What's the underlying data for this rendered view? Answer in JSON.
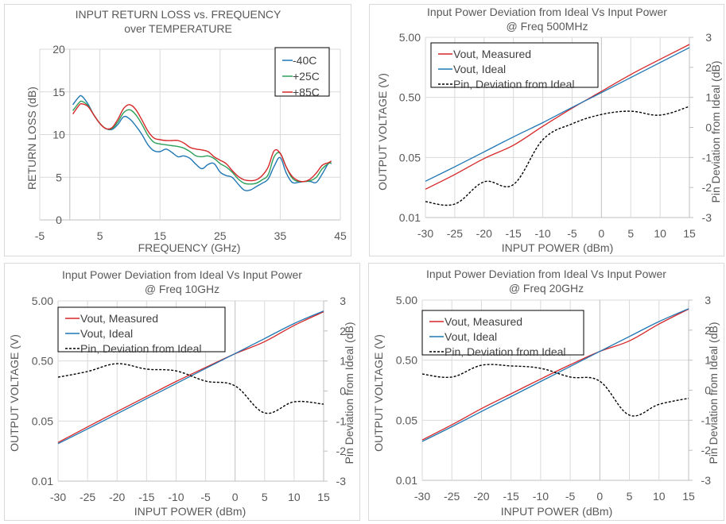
{
  "chart_data": [
    {
      "id": "return-loss",
      "type": "line",
      "title": [
        "INPUT RETURN LOSS vs. FREQUENCY",
        "over TEMPERATURE"
      ],
      "xlabel": "FREQUENCY (GHz)",
      "ylabel": "RETURN LOSS (dB)",
      "xlim": [
        -5,
        45
      ],
      "ylim": [
        0,
        20
      ],
      "xticks": [
        -5,
        5,
        15,
        25,
        35,
        45
      ],
      "yticks": [
        0,
        5,
        10,
        15,
        20
      ],
      "grid": true,
      "legend": "top-right",
      "x": [
        0.5,
        1.5,
        2,
        3,
        4,
        5,
        6,
        7,
        8,
        9,
        10,
        11,
        12,
        13,
        14,
        15,
        16,
        17,
        18,
        19,
        20,
        21,
        22,
        23,
        24,
        25,
        26,
        27,
        28,
        29,
        30,
        31,
        32,
        33,
        34,
        35,
        36,
        37,
        38,
        39,
        40,
        41,
        42,
        43,
        43.5
      ],
      "series": [
        {
          "name": "-40C",
          "color": "#1f77b4",
          "values": [
            13.5,
            14.4,
            14.5,
            13.6,
            12.3,
            11.3,
            10.7,
            10.6,
            11.2,
            12.1,
            11.8,
            11.0,
            10.0,
            8.8,
            8.1,
            8.0,
            8.3,
            7.9,
            7.4,
            7.5,
            7.2,
            6.5,
            6.0,
            6.5,
            6.6,
            5.6,
            5.2,
            5.0,
            4.2,
            3.5,
            3.5,
            3.9,
            4.3,
            4.8,
            6.3,
            7.3,
            5.5,
            4.4,
            4.4,
            4.5,
            4.5,
            4.4,
            5.4,
            6.6,
            6.6
          ]
        },
        {
          "name": "+25C",
          "color": "#2ca05a",
          "values": [
            12.8,
            13.7,
            13.9,
            13.4,
            12.3,
            11.3,
            10.7,
            10.7,
            11.5,
            12.6,
            12.9,
            12.3,
            11.2,
            9.9,
            9.1,
            8.9,
            8.8,
            8.7,
            8.6,
            8.4,
            8.0,
            7.5,
            7.4,
            7.5,
            7.2,
            6.6,
            6.2,
            5.6,
            4.8,
            4.3,
            4.2,
            4.3,
            4.7,
            5.3,
            7.4,
            7.8,
            6.2,
            4.9,
            4.5,
            4.5,
            4.6,
            5.0,
            6.0,
            6.6,
            6.7
          ]
        },
        {
          "name": "+85C",
          "color": "#d62728",
          "values": [
            12.4,
            13.4,
            13.6,
            13.3,
            12.3,
            11.3,
            10.7,
            10.8,
            11.8,
            13.1,
            13.5,
            12.9,
            11.7,
            10.4,
            9.6,
            9.4,
            9.3,
            9.3,
            9.3,
            9.0,
            8.5,
            8.3,
            8.2,
            8.0,
            7.4,
            7.0,
            6.6,
            5.8,
            5.1,
            4.7,
            4.6,
            4.7,
            5.2,
            6.2,
            8.1,
            7.8,
            6.2,
            5.1,
            4.6,
            4.5,
            4.8,
            5.5,
            6.4,
            6.7,
            6.9
          ]
        }
      ]
    },
    {
      "id": "dev-500mhz",
      "type": "line",
      "title": [
        "Input Power Deviation from Ideal Vs Input Power",
        "@ Freq 500MHz"
      ],
      "xlabel": "INPUT POWER (dBm)",
      "ylabel": "OUTPUT VOLTAGE (V)",
      "y2label": "Pin Deviation from Ideal (dB)",
      "xlim": [
        -30,
        15
      ],
      "xticks": [
        -30,
        -25,
        -20,
        -15,
        -10,
        -5,
        0,
        5,
        10,
        15
      ],
      "yscale": "log",
      "ylim": [
        0.005,
        5
      ],
      "ytick_labels": [
        "0.01",
        "0.05",
        "0.50",
        "5.00"
      ],
      "y2lim": [
        -3,
        3
      ],
      "y2ticks": [
        -3,
        -2,
        -1,
        0,
        1,
        2,
        3
      ],
      "grid": true,
      "legend": "top-left",
      "x": [
        -30,
        -25,
        -20,
        -15,
        -10,
        -5,
        0,
        5,
        10,
        15
      ],
      "series": [
        {
          "name": "Vout, Measured",
          "color": "#d62728",
          "axis": "left",
          "style": "solid",
          "values": [
            0.0148,
            0.026,
            0.048,
            0.08,
            0.165,
            0.33,
            0.63,
            1.2,
            2.15,
            3.8
          ]
        },
        {
          "name": "Vout, Ideal",
          "color": "#1f77b4",
          "axis": "left",
          "style": "solid",
          "values": [
            0.0201,
            0.035,
            0.062,
            0.11,
            0.19,
            0.34,
            0.6,
            1.07,
            1.9,
            3.38
          ]
        },
        {
          "name": "Pin, Deviation from Ideal",
          "color": "#000000",
          "axis": "right",
          "style": "dashed",
          "values": [
            -2.47,
            -2.55,
            -1.81,
            -1.9,
            -0.41,
            0.12,
            0.43,
            0.54,
            0.41,
            0.7
          ]
        }
      ]
    },
    {
      "id": "dev-10ghz",
      "type": "line",
      "title": [
        "Input Power Deviation from Ideal Vs Input Power",
        "@ Freq 10GHz"
      ],
      "xlabel": "INPUT POWER (dBm)",
      "ylabel": "OUTPUT VOLTAGE (V)",
      "y2label": "Pin Deviation from Ideal (dB)",
      "xlim": [
        -30,
        15
      ],
      "xticks": [
        -30,
        -25,
        -20,
        -15,
        -10,
        -5,
        0,
        5,
        10,
        15
      ],
      "yscale": "log",
      "ylim": [
        0.005,
        5
      ],
      "ytick_labels": [
        "0.01",
        "0.05",
        "0.50",
        "5.00"
      ],
      "y2lim": [
        -3,
        3
      ],
      "y2ticks": [
        -3,
        -2,
        -1,
        0,
        1,
        2,
        3
      ],
      "grid": true,
      "legend": "top-left",
      "x": [
        -30,
        -25,
        -20,
        -15,
        -10,
        -5,
        0,
        5,
        10,
        15
      ],
      "series": [
        {
          "name": "Vout, Measured",
          "color": "#d62728",
          "axis": "left",
          "style": "solid",
          "values": [
            0.022,
            0.04,
            0.072,
            0.128,
            0.228,
            0.39,
            0.66,
            1.05,
            1.95,
            3.3
          ]
        },
        {
          "name": "Vout, Ideal",
          "color": "#1f77b4",
          "axis": "left",
          "style": "solid",
          "values": [
            0.021,
            0.037,
            0.066,
            0.118,
            0.21,
            0.375,
            0.665,
            1.18,
            2.1,
            3.4
          ]
        },
        {
          "name": "Pin, Deviation from Ideal",
          "color": "#000000",
          "axis": "right",
          "style": "dashed",
          "values": [
            0.46,
            0.65,
            0.91,
            0.73,
            0.67,
            0.33,
            0.17,
            -0.73,
            -0.36,
            -0.44
          ]
        }
      ]
    },
    {
      "id": "dev-20ghz",
      "type": "line",
      "title": [
        "Input Power Deviation from Ideal Vs Input Power",
        "@ Freq 20GHz"
      ],
      "xlabel": "INPUT POWER (dBm)",
      "ylabel": "OUTPUT VOLTAGE (V)",
      "y2label": "Pin Deviation from Ideal (dB)",
      "xlim": [
        -30,
        15
      ],
      "xticks": [
        -30,
        -25,
        -20,
        -15,
        -10,
        -5,
        0,
        5,
        10,
        15
      ],
      "yscale": "log",
      "ylim": [
        0.005,
        5
      ],
      "ytick_labels": [
        "0.01",
        "0.05",
        "0.50",
        "5.00"
      ],
      "y2lim": [
        -3,
        3
      ],
      "y2ticks": [
        -3,
        -2,
        -1,
        0,
        1,
        2,
        3
      ],
      "grid": true,
      "legend": "top-left",
      "x": [
        -30,
        -25,
        -20,
        -15,
        -10,
        -5,
        0,
        5,
        10,
        15
      ],
      "series": [
        {
          "name": "Vout, Measured",
          "color": "#d62728",
          "axis": "left",
          "style": "solid",
          "values": [
            0.0235,
            0.042,
            0.078,
            0.138,
            0.243,
            0.42,
            0.7,
            1.05,
            2.0,
            3.55
          ]
        },
        {
          "name": "Vout, Ideal",
          "color": "#1f77b4",
          "axis": "left",
          "style": "solid",
          "values": [
            0.0222,
            0.039,
            0.07,
            0.124,
            0.221,
            0.393,
            0.7,
            1.24,
            2.2,
            3.6
          ]
        },
        {
          "name": "Pin, Deviation from Ideal",
          "color": "#000000",
          "axis": "right",
          "style": "dashed",
          "values": [
            0.54,
            0.44,
            0.83,
            0.81,
            0.73,
            0.44,
            0.3,
            -0.83,
            -0.47,
            -0.27
          ]
        }
      ]
    }
  ]
}
